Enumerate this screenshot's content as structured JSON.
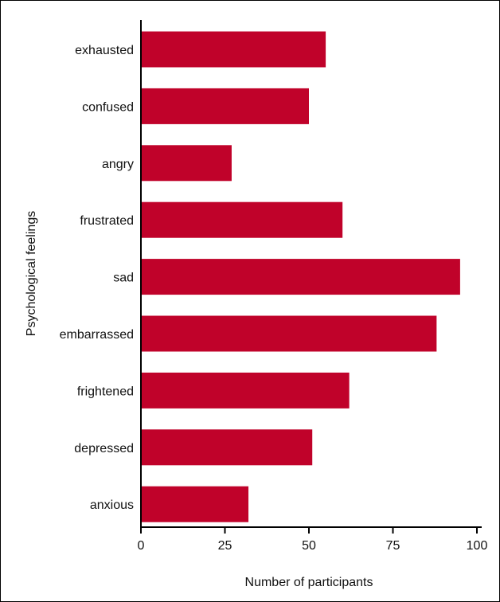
{
  "chart_data": {
    "type": "bar",
    "orientation": "horizontal",
    "title": "",
    "xlabel": "Number of participants",
    "ylabel": "Psychological feelings",
    "xlim": [
      0,
      100
    ],
    "xticks": [
      0,
      25,
      50,
      75,
      100
    ],
    "grid": false,
    "bar_color": "#c0022a",
    "categories": [
      "exhausted",
      "confused",
      "angry",
      "frustrated",
      "sad",
      "embarrassed",
      "frightened",
      "depressed",
      "anxious"
    ],
    "values": [
      55,
      50,
      27,
      60,
      95,
      88,
      62,
      51,
      32
    ]
  }
}
